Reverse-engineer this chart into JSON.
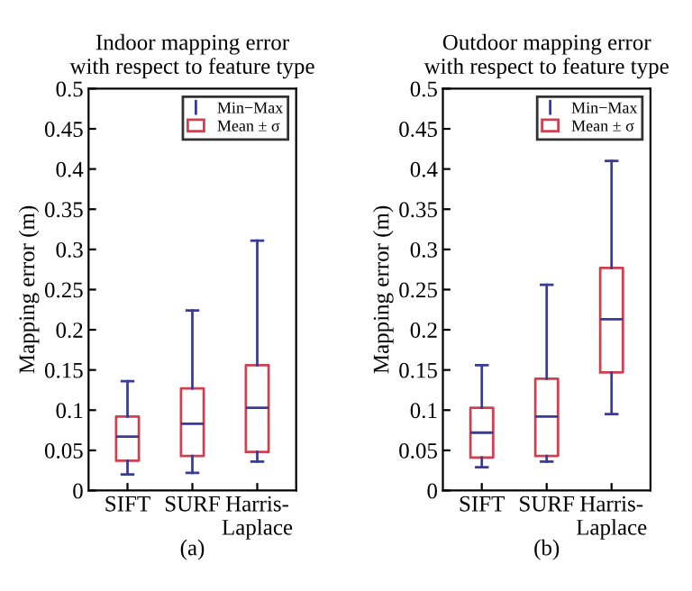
{
  "chart_data": [
    {
      "type": "box",
      "title": "Indoor mapping error\nwith respect to feature type",
      "xlabel": "(a)",
      "ylabel": "Mapping error (m)",
      "categories": [
        "SIFT",
        "SURF",
        "Harris-\nLaplace"
      ],
      "ylim": [
        0,
        0.5
      ],
      "yticks": [
        0,
        0.05,
        0.1,
        0.15,
        0.2,
        0.25,
        0.3,
        0.35,
        0.4,
        0.45,
        0.5
      ],
      "grid": false,
      "legend": "top right",
      "annotations": [
        "Min−Max"
      ],
      "colors": [
        "#3a3a9a",
        "#3a3a9a",
        "#3a3a9a"
      ],
      "series": [
        {
          "name": "Mean ± σ",
          "color": "#d04050",
          "boxes": [
            {
              "low": 0.02,
              "q1": 0.037,
              "median": 0.067,
              "q3": 0.092,
              "high": 0.136
            },
            {
              "low": 0.022,
              "q1": 0.043,
              "median": 0.083,
              "q3": 0.127,
              "high": 0.224
            },
            {
              "low": 0.036,
              "q1": 0.048,
              "median": 0.103,
              "q3": 0.156,
              "high": 0.311
            }
          ]
        }
      ]
    },
    {
      "type": "box",
      "title": "Outdoor mapping error\nwith respect to feature type",
      "xlabel": "(b)",
      "ylabel": "Mapping error (m)",
      "categories": [
        "SIFT",
        "SURF",
        "Harris-\nLaplace"
      ],
      "ylim": [
        0,
        0.5
      ],
      "yticks": [
        0,
        0.05,
        0.1,
        0.15,
        0.2,
        0.25,
        0.3,
        0.35,
        0.4,
        0.45,
        0.5
      ],
      "grid": false,
      "legend": "top right",
      "annotations": [
        "Min−Max"
      ],
      "colors": [
        "#3a3a9a",
        "#3a3a9a",
        "#3a3a9a"
      ],
      "series": [
        {
          "name": "Mean ± σ",
          "color": "#d04050",
          "boxes": [
            {
              "low": 0.029,
              "q1": 0.041,
              "median": 0.072,
              "q3": 0.103,
              "high": 0.156
            },
            {
              "low": 0.036,
              "q1": 0.043,
              "median": 0.092,
              "q3": 0.139,
              "high": 0.256
            },
            {
              "low": 0.095,
              "q1": 0.147,
              "median": 0.213,
              "q3": 0.277,
              "high": 0.41
            }
          ]
        }
      ]
    }
  ]
}
